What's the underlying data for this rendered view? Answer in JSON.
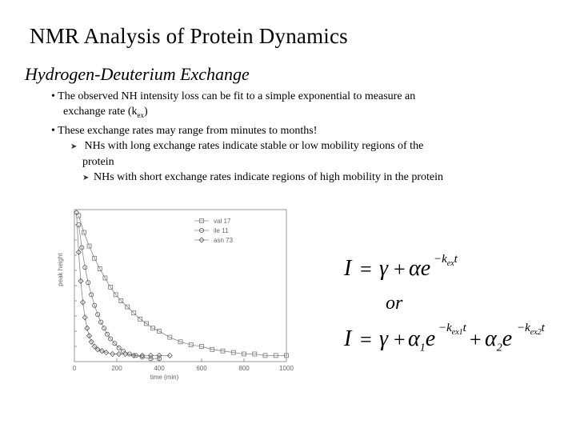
{
  "slide": {
    "title": "NMR Analysis of Protein Dynamics",
    "subtitle": "Hydrogen-Deuterium Exchange",
    "bullet1_prefix": "• The observed NH intensity loss can be fit to a simple exponential to measure an",
    "bullet1_line2_prefix": "exchange rate (k",
    "bullet1_line2_sub": "ex",
    "bullet1_line2_suffix": ")",
    "bullet2": "• These exchange rates may range from minutes to months!",
    "sub1_line1": "NHs with long exchange rates indicate stable or low mobility regions of the",
    "sub1_line2": "protein",
    "sub2": "NHs with short exchange rates indicate regions of high mobility in the protein",
    "arrow_icon": "➤"
  },
  "equations": {
    "eq1_I": "I",
    "eq1_eq": "=",
    "eq1_gamma": "γ",
    "eq1_plus": "+",
    "eq1_alpha_e": "αe",
    "eq1_exp": "−k",
    "eq1_exp_sub": "ex",
    "eq1_exp_t": "t",
    "or": "or",
    "eq2_I": "I",
    "eq2_eq": "=",
    "eq2_gamma": "γ",
    "eq2_plus1": "+",
    "eq2_alpha1": "α",
    "eq2_alpha1_sub": "1",
    "eq2_e1": "e",
    "eq2_exp1": "−k",
    "eq2_exp1_sub": "ex1",
    "eq2_exp1_t": "t",
    "eq2_plus2": "+",
    "eq2_alpha2": "α",
    "eq2_alpha2_sub": "2",
    "eq2_e2": "e",
    "eq2_exp2": "−k",
    "eq2_exp2_sub": "ex2",
    "eq2_exp2_t": "t"
  },
  "chart_data": {
    "type": "scatter",
    "xlabel": "time (min)",
    "ylabel": "peak height",
    "xlim": [
      0,
      1000
    ],
    "ylim": [
      0,
      1
    ],
    "x_ticks": [
      "0",
      "200",
      "400",
      "600",
      "800",
      "1000"
    ],
    "legend_position": "top-right",
    "series": [
      {
        "name": "val 17",
        "marker": "square",
        "x": [
          20,
          45,
          70,
          95,
          120,
          145,
          170,
          195,
          220,
          250,
          280,
          310,
          340,
          370,
          400,
          450,
          500,
          550,
          600,
          650,
          700,
          750,
          800,
          850,
          900,
          950,
          1000
        ],
        "y": [
          0.96,
          0.85,
          0.76,
          0.68,
          0.61,
          0.55,
          0.49,
          0.44,
          0.4,
          0.36,
          0.32,
          0.28,
          0.25,
          0.22,
          0.2,
          0.16,
          0.13,
          0.11,
          0.1,
          0.08,
          0.07,
          0.06,
          0.05,
          0.05,
          0.04,
          0.04,
          0.04
        ]
      },
      {
        "name": "ile 11",
        "marker": "circle",
        "x": [
          20,
          35,
          50,
          65,
          80,
          95,
          110,
          125,
          140,
          155,
          170,
          190,
          210,
          230,
          260,
          290,
          320,
          360,
          400
        ],
        "y": [
          0.9,
          0.75,
          0.62,
          0.52,
          0.44,
          0.37,
          0.31,
          0.26,
          0.22,
          0.18,
          0.15,
          0.12,
          0.09,
          0.07,
          0.05,
          0.04,
          0.03,
          0.02,
          0.02
        ]
      },
      {
        "name": "asn 73",
        "marker": "diamond",
        "x": [
          10,
          20,
          30,
          40,
          50,
          60,
          70,
          80,
          95,
          110,
          130,
          150,
          180,
          210,
          240,
          280,
          320,
          360,
          400,
          450
        ],
        "y": [
          0.98,
          0.72,
          0.53,
          0.39,
          0.29,
          0.22,
          0.17,
          0.13,
          0.1,
          0.08,
          0.07,
          0.06,
          0.05,
          0.05,
          0.05,
          0.04,
          0.04,
          0.04,
          0.04,
          0.04
        ]
      }
    ]
  }
}
